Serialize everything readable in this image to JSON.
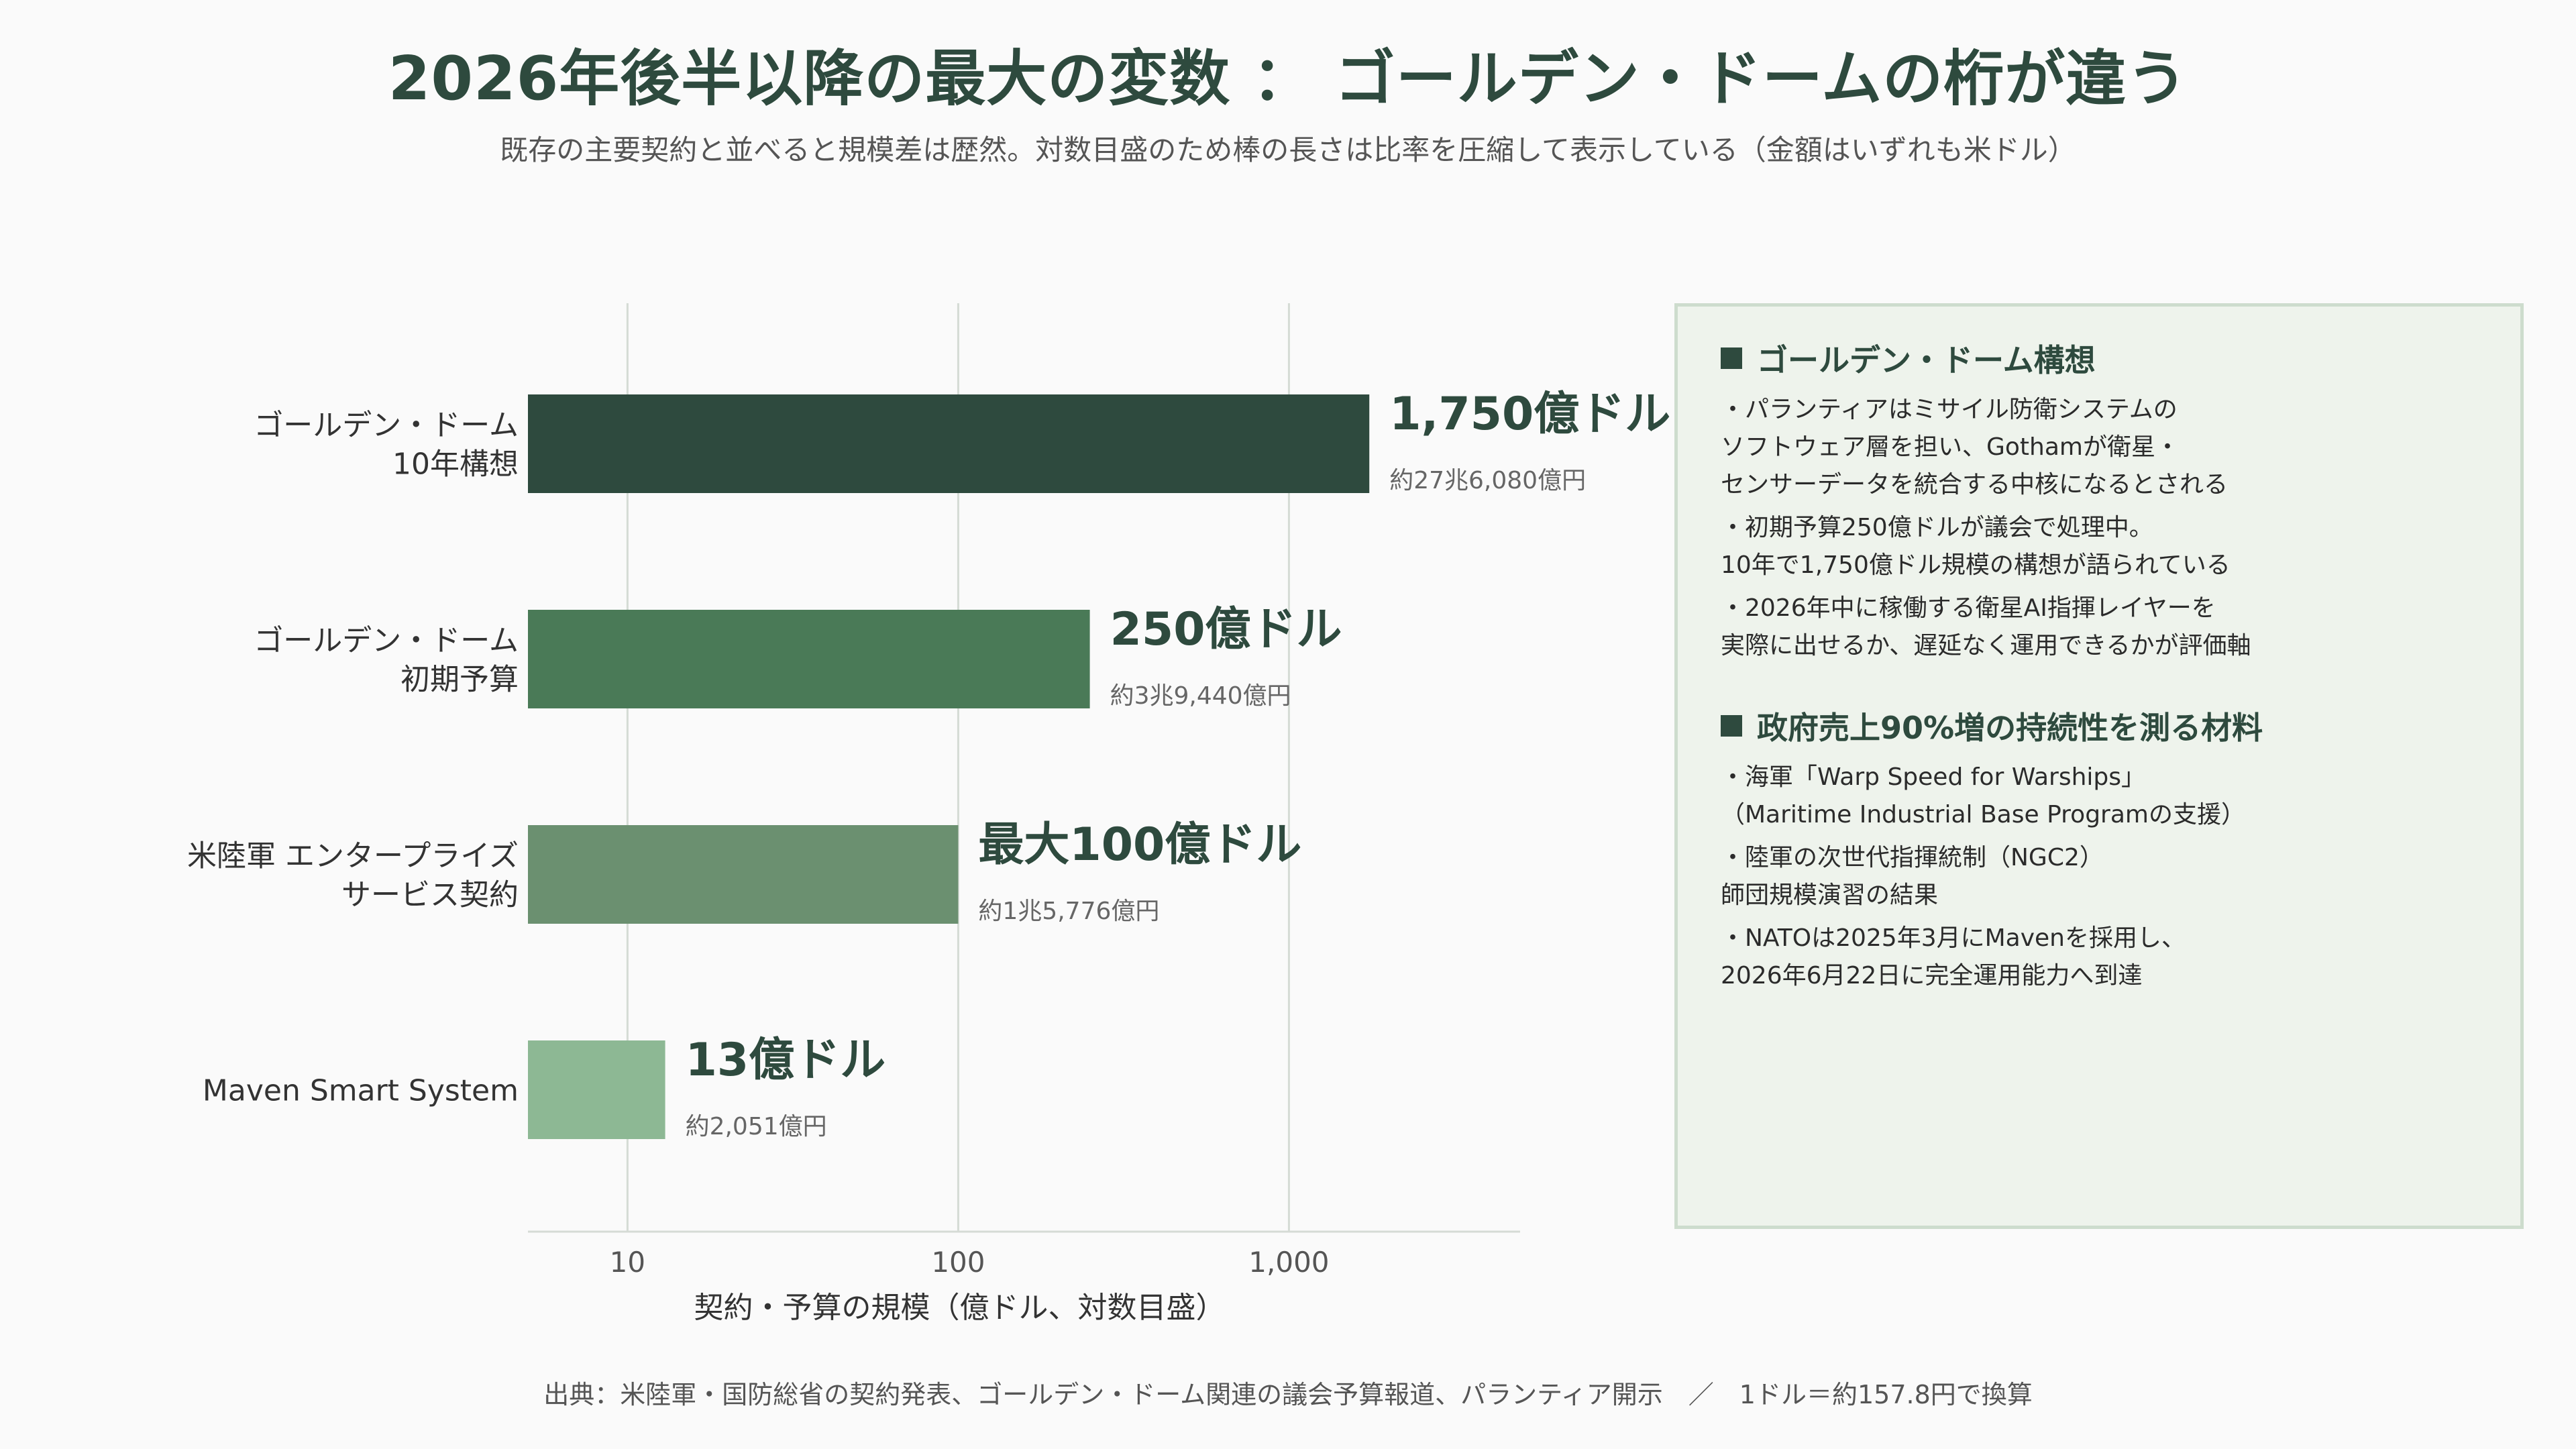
{
  "title": "2026年後半以降の最大の変数 ： ゴールデン・ドームの桁が違う",
  "subtitle": "既存の主要契約と並べると規模差は歴然。対数目盛のため棒の長さは比率を圧縮して表示している（金額はいずれも米ドル）",
  "colors": {
    "bars": [
      "#2e4a3e",
      "#4a7a57",
      "#6b9070",
      "#8db894"
    ],
    "title": "#2e4a3e",
    "grid": "#d5dbd5",
    "panel_bg": "#eef3ec",
    "panel_border": "#cddccd"
  },
  "chart_data": {
    "type": "bar",
    "orientation": "horizontal",
    "x_scale": "log",
    "xlabel": "契約・予算の規模（億ドル、対数目盛）",
    "xlim": [
      5,
      5000
    ],
    "xticks": [
      10,
      100,
      1000
    ],
    "xtick_labels": [
      "10",
      "100",
      "1,000"
    ],
    "grid": true,
    "categories": [
      [
        "ゴールデン・ドーム",
        "10年構想"
      ],
      [
        "ゴールデン・ドーム",
        "初期予算"
      ],
      [
        "米陸軍 エンタープライズ",
        "サービス契約"
      ],
      [
        "Maven Smart System"
      ]
    ],
    "values": [
      1750,
      250,
      100,
      13
    ],
    "value_labels": [
      "1,750億ドル",
      "250億ドル",
      "最大100億ドル",
      "13億ドル"
    ],
    "sub_labels": [
      "約27兆6,080億円",
      "約3兆9,440億円",
      "約1兆5,776億円",
      "約2,051億円"
    ]
  },
  "panel": {
    "sections": [
      {
        "title": "ゴールデン・ドーム構想",
        "items": [
          [
            "・パランティアはミサイル防衛システムの",
            "ソフトウェア層を担い、Gothamが衛星・",
            "センサーデータを統合する中核になるとされる"
          ],
          [
            "・初期予算250億ドルが議会で処理中。",
            "10年で1,750億ドル規模の構想が語られている"
          ],
          [
            "・2026年中に稼働する衛星AI指揮レイヤーを",
            "実際に出せるか、遅延なく運用できるかが評価軸"
          ]
        ]
      },
      {
        "title": "政府売上90%増の持続性を測る材料",
        "items": [
          [
            "・海軍「Warp Speed for Warships」",
            "（Maritime Industrial Base Programの支援）"
          ],
          [
            "・陸軍の次世代指揮統制（NGC2）",
            "師団規模演習の結果"
          ],
          [
            "・NATOは2025年3月にMavenを採用し、",
            "2026年6月22日に完全運用能力へ到達"
          ]
        ]
      }
    ]
  },
  "footer": "出典：米陸軍・国防総省の契約発表、ゴールデン・ドーム関連の議会予算報道、パランティア開示　／　1ドル＝約157.8円で換算"
}
